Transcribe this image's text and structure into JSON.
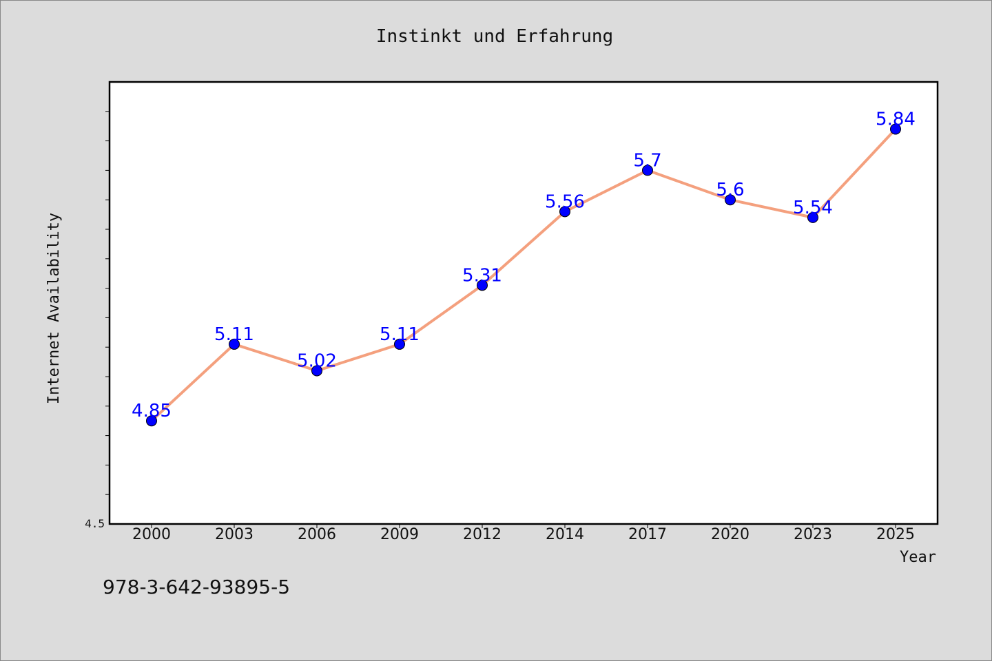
{
  "chart_data": {
    "type": "line",
    "title": "Instinkt und Erfahrung",
    "xlabel": "Year",
    "ylabel": "Internet Availability",
    "categories": [
      "2000",
      "2003",
      "2006",
      "2009",
      "2012",
      "2014",
      "2017",
      "2020",
      "2023",
      "2025"
    ],
    "series": [
      {
        "values": [
          4.85,
          5.11,
          5.02,
          5.11,
          5.31,
          5.56,
          5.7,
          5.6,
          5.54,
          5.84
        ],
        "labels": [
          "4.85",
          "5.11",
          "5.02",
          "5.11",
          "5.31",
          "5.56",
          "5.7",
          "5.6",
          "5.54",
          "5.84"
        ]
      }
    ],
    "ylim": [
      4.5,
      6.0
    ],
    "ytick_label": "4.5",
    "grid": false,
    "line_color": "#f4a07e",
    "marker_color": "#0000ff",
    "label_color": "#0000ff",
    "background_color": "#dcdcdc",
    "plot_background": "#ffffff"
  },
  "footer": {
    "isbn": "978-3-642-93895-5"
  }
}
